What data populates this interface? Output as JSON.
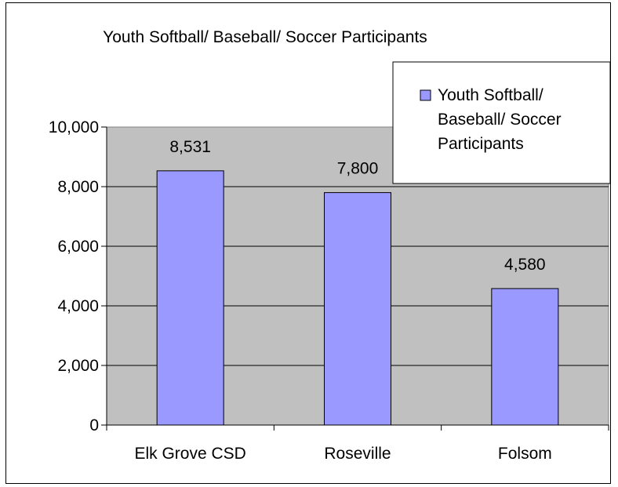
{
  "chart_data": {
    "type": "bar",
    "title": "Youth Softball/ Baseball/ Soccer Participants",
    "categories": [
      "Elk Grove CSD",
      "Roseville",
      "Folsom"
    ],
    "series": [
      {
        "name": "Youth Softball/ Baseball/ Soccer Participants",
        "values": [
          8531,
          7800,
          4580
        ],
        "data_labels": [
          "8,531",
          "7,800",
          "4,580"
        ],
        "color": "#9999ff"
      }
    ],
    "ylim": [
      0,
      10000
    ],
    "yticks": [
      0,
      2000,
      4000,
      6000,
      8000,
      10000
    ],
    "ytick_labels": [
      "0",
      "2,000",
      "4,000",
      "6,000",
      "8,000",
      "10,000"
    ],
    "grid": true,
    "plot_background": "#c0c0c0",
    "legend": {
      "position": "top-right",
      "lines": [
        "Youth Softball/",
        "Baseball/ Soccer",
        "Participants"
      ]
    }
  }
}
